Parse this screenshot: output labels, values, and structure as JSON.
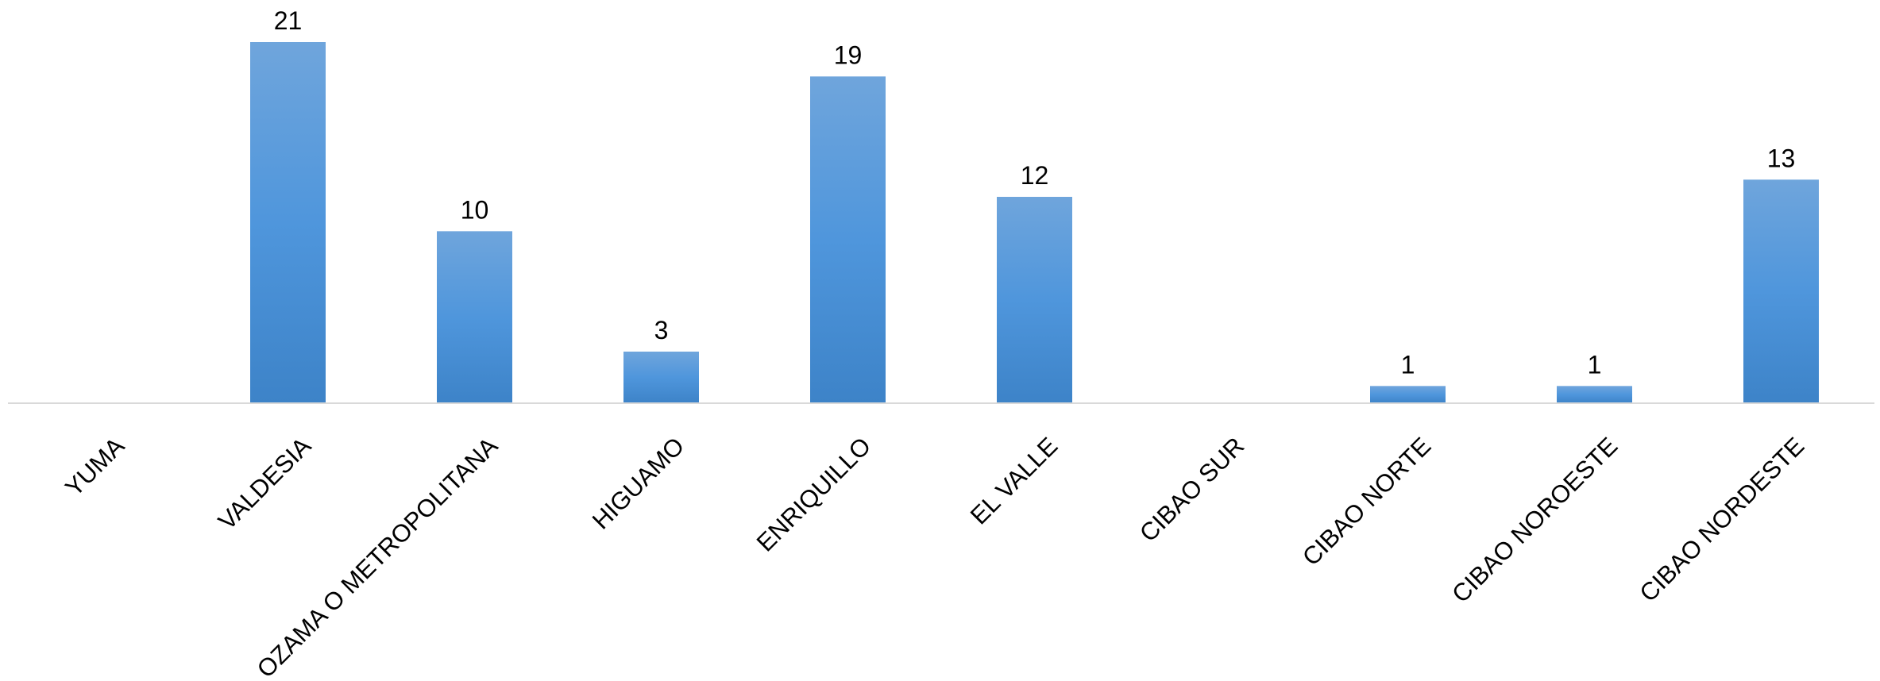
{
  "chart_data": {
    "type": "bar",
    "title": "",
    "xlabel": "",
    "ylabel": "",
    "categories": [
      "YUMA",
      "VALDESIA",
      "OZAMA O METROPOLITANA",
      "HIGUAMO",
      "ENRIQUILLO",
      "EL VALLE",
      "CIBAO SUR",
      "CIBAO NORTE",
      "CIBAO NOROESTE",
      "CIBAO NORDESTE"
    ],
    "values": [
      null,
      21,
      10,
      3,
      19,
      12,
      null,
      1,
      1,
      13
    ],
    "data_labels": [
      "",
      "21",
      "10",
      "3",
      "19",
      "12",
      "",
      "1",
      "1",
      "13"
    ],
    "ylim": [
      0,
      21
    ],
    "grid": false,
    "legend": "none",
    "colors": {
      "bar_top": "#6fa5dc",
      "bar_mid": "#4f96dc",
      "bar_bottom": "#3d83c8",
      "axis": "#d9d9d9",
      "text": "#000000"
    }
  }
}
